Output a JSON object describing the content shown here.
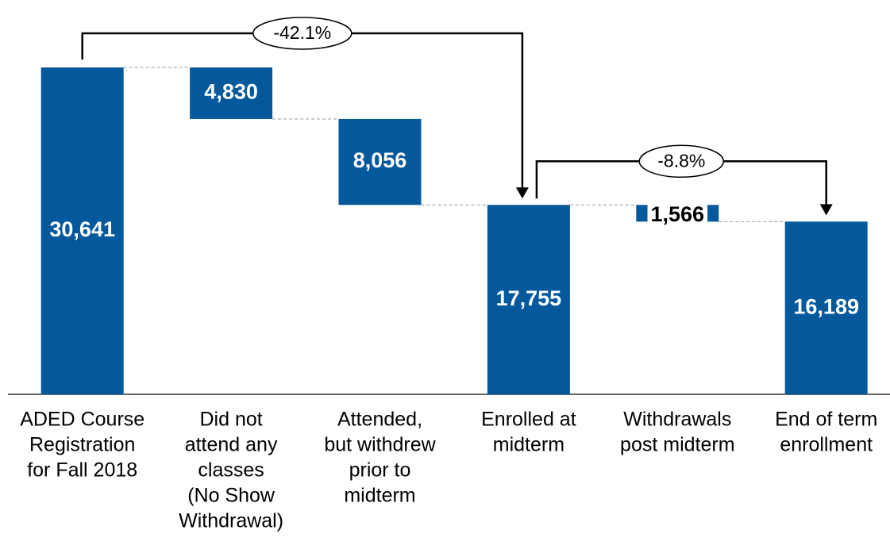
{
  "chart_data": {
    "type": "waterfall",
    "categories": [
      [
        "ADED Course",
        "Registration",
        "for Fall 2018"
      ],
      [
        "Did not",
        "attend any",
        "classes",
        "(No Show",
        "Withdrawal)"
      ],
      [
        "Attended,",
        "but withdrew",
        "prior to",
        "midterm"
      ],
      [
        "Enrolled at",
        "midterm"
      ],
      [
        "Withdrawals",
        "post midterm"
      ],
      [
        "End of term",
        "enrollment"
      ]
    ],
    "values": [
      30641,
      4830,
      8056,
      17755,
      1566,
      16189
    ],
    "value_labels": [
      "30,641",
      "4,830",
      "8,056",
      "17,755",
      "1,566",
      "16,189"
    ],
    "kinds": [
      "total",
      "decrease",
      "decrease",
      "total",
      "decrease",
      "total"
    ],
    "color": "#03599c",
    "annotations": [
      {
        "text": "-42.1%",
        "from": 0,
        "to": 3
      },
      {
        "text": "-8.8%",
        "from": 3,
        "to": 5
      }
    ]
  }
}
